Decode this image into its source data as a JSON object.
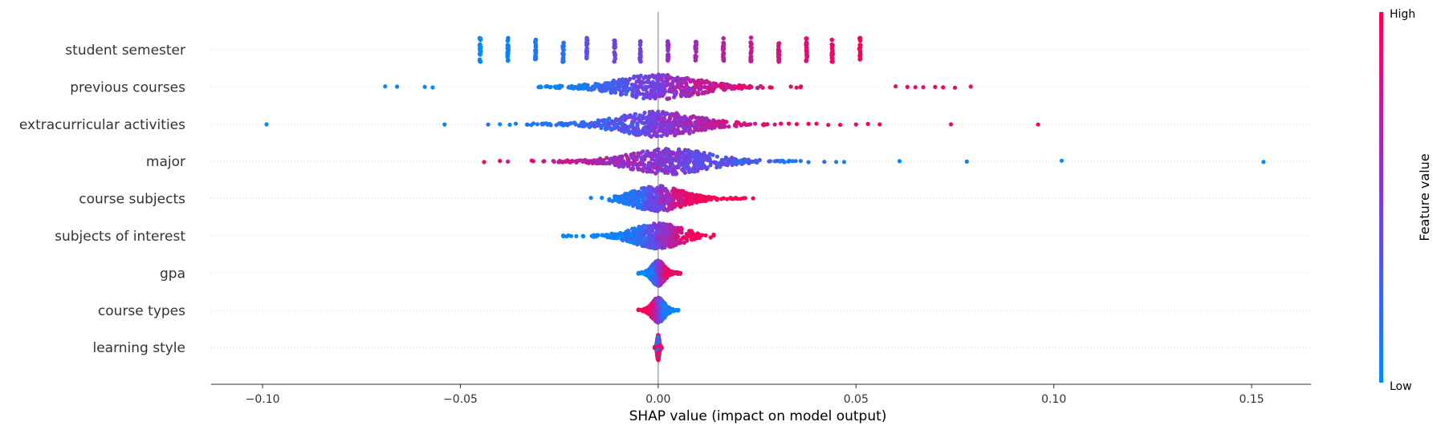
{
  "chart_data": {
    "type": "scatter",
    "subtype": "shap-beeswarm",
    "title": "",
    "xlabel": "SHAP value (impact on model output)",
    "xlim": [
      -0.113,
      0.165
    ],
    "x_ticks": [
      -0.1,
      -0.05,
      0.0,
      0.05,
      0.1,
      0.15
    ],
    "x_tick_labels": [
      "−0.10",
      "−0.05",
      "0.00",
      "0.05",
      "0.10",
      "0.15"
    ],
    "zero_line": 0.0,
    "grid": false,
    "colorbar": {
      "label": "Feature value",
      "high_label": "High",
      "low_label": "Low",
      "low_color": "#008afb",
      "mid_color": "#7b3be0",
      "high_color": "#ff0052"
    },
    "features": [
      {
        "name": "student semester",
        "discrete": true,
        "x": [
          -0.045,
          -0.038,
          -0.031,
          -0.024,
          -0.018,
          -0.011,
          -0.0045,
          0.0025,
          0.0095,
          0.0165,
          0.0235,
          0.0305,
          0.0375,
          0.044,
          0.051
        ],
        "feature_value": [
          0.0,
          0.05,
          0.1,
          0.15,
          0.35,
          0.45,
          0.45,
          0.6,
          0.65,
          0.72,
          0.78,
          0.85,
          0.9,
          0.95,
          1.0
        ]
      },
      {
        "name": "previous courses",
        "min": -0.069,
        "max": 0.079,
        "peak": 0.0,
        "outliers_low": [
          -0.069,
          -0.066,
          -0.059,
          -0.057
        ],
        "outliers_high": [
          0.06,
          0.063,
          0.065,
          0.067,
          0.07,
          0.072,
          0.075,
          0.079
        ],
        "color_trend": "low-left high-right"
      },
      {
        "name": "extracurricular activities",
        "min": -0.099,
        "max": 0.096,
        "peak": 0.0,
        "outliers_low": [
          -0.099,
          -0.054,
          -0.043,
          -0.04,
          -0.036,
          -0.033,
          -0.029
        ],
        "outliers_high": [
          0.031,
          0.033,
          0.035,
          0.038,
          0.04,
          0.043,
          0.046,
          0.05,
          0.053,
          0.056,
          0.074,
          0.096
        ],
        "color_trend": "low-left high-right"
      },
      {
        "name": "major",
        "min": -0.044,
        "max": 0.153,
        "peak": 0.003,
        "outliers_low": [
          -0.044,
          -0.04,
          -0.038,
          -0.032
        ],
        "outliers_high": [
          0.025,
          0.028,
          0.03,
          0.033,
          0.036,
          0.038,
          0.042,
          0.045,
          0.047,
          0.061,
          0.078,
          0.102,
          0.153
        ],
        "color_trend": "high-left low-right"
      },
      {
        "name": "course subjects",
        "min": -0.017,
        "max": 0.024,
        "peak": 0.0,
        "outliers_low": [
          -0.017
        ],
        "outliers_high": [
          0.02,
          0.022,
          0.024
        ],
        "color_trend": "low-left high-right"
      },
      {
        "name": "subjects of interest",
        "min": -0.024,
        "max": 0.014,
        "peak": 0.0,
        "outliers_low": [
          -0.024,
          -0.022,
          -0.019
        ],
        "outliers_high": [
          0.012,
          0.014
        ],
        "color_trend": "low-left high-right"
      },
      {
        "name": "gpa",
        "min": -0.005,
        "max": 0.006,
        "peak": 0.0,
        "color_trend": "low-left high-right"
      },
      {
        "name": "course types",
        "min": -0.005,
        "max": 0.006,
        "peak": 0.0,
        "color_trend": "high-left low-right"
      },
      {
        "name": "learning style",
        "min": -0.001,
        "max": 0.001,
        "peak": 0.0,
        "color_trend": "mixed"
      }
    ]
  }
}
